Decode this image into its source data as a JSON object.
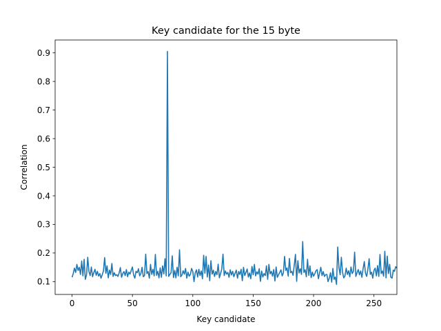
{
  "chart_data": {
    "type": "line",
    "title": "Key candidate for the 15 byte",
    "xlabel": "Key candidate",
    "ylabel": "Correlation",
    "xlim": [
      -14,
      269
    ],
    "ylim": [
      0.055,
      0.945
    ],
    "xticks": [
      0,
      50,
      100,
      150,
      200,
      250
    ],
    "yticks": [
      0.1,
      0.2,
      0.3,
      0.4,
      0.5,
      0.6,
      0.7,
      0.8,
      0.9
    ],
    "grid": false,
    "legend": "none",
    "series": [
      {
        "color": "#1f77b4",
        "x_start": 0,
        "values": [
          0.115,
          0.128,
          0.147,
          0.132,
          0.16,
          0.139,
          0.15,
          0.125,
          0.172,
          0.12,
          0.178,
          0.108,
          0.123,
          0.185,
          0.135,
          0.121,
          0.151,
          0.117,
          0.131,
          0.143,
          0.122,
          0.136,
          0.119,
          0.128,
          0.112,
          0.124,
          0.137,
          0.184,
          0.129,
          0.155,
          0.113,
          0.14,
          0.125,
          0.163,
          0.118,
          0.131,
          0.121,
          0.124,
          0.118,
          0.13,
          0.149,
          0.115,
          0.128,
          0.135,
          0.121,
          0.142,
          0.117,
          0.133,
          0.126,
          0.139,
          0.151,
          0.123,
          0.112,
          0.136,
          0.131,
          0.145,
          0.12,
          0.128,
          0.15,
          0.117,
          0.121,
          0.196,
          0.128,
          0.135,
          0.112,
          0.16,
          0.125,
          0.143,
          0.12,
          0.195,
          0.122,
          0.136,
          0.113,
          0.148,
          0.115,
          0.155,
          0.127,
          0.18,
          0.12,
          0.905,
          0.118,
          0.125,
          0.131,
          0.19,
          0.114,
          0.139,
          0.113,
          0.15,
          0.12,
          0.211,
          0.117,
          0.123,
          0.138,
          0.126,
          0.146,
          0.112,
          0.133,
          0.119,
          0.125,
          0.146,
          0.135,
          0.1,
          0.13,
          0.141,
          0.116,
          0.143,
          0.121,
          0.137,
          0.11,
          0.192,
          0.129,
          0.188,
          0.116,
          0.158,
          0.103,
          0.173,
          0.126,
          0.14,
          0.118,
          0.135,
          0.124,
          0.161,
          0.113,
          0.128,
          0.144,
          0.196,
          0.121,
          0.137,
          0.126,
          0.132,
          0.115,
          0.141,
          0.123,
          0.136,
          0.117,
          0.129,
          0.14,
          0.112,
          0.135,
          0.125,
          0.143,
          0.103,
          0.15,
          0.121,
          0.132,
          0.144,
          0.116,
          0.13,
          0.11,
          0.153,
          0.124,
          0.16,
          0.12,
          0.134,
          0.126,
          0.145,
          0.101,
          0.137,
          0.116,
          0.128,
          0.121,
          0.155,
          0.108,
          0.16,
          0.127,
          0.136,
          0.119,
          0.142,
          0.102,
          0.151,
          0.115,
          0.124,
          0.132,
          0.141,
          0.12,
          0.13,
          0.188,
          0.139,
          0.148,
          0.119,
          0.181,
          0.131,
          0.136,
          0.122,
          0.157,
          0.195,
          0.101,
          0.173,
          0.13,
          0.145,
          0.125,
          0.24,
          0.132,
          0.141,
          0.117,
          0.178,
          0.122,
          0.155,
          0.114,
          0.133,
          0.119,
          0.127,
          0.138,
          0.142,
          0.11,
          0.13,
          0.15,
          0.121,
          0.135,
          0.118,
          0.124,
          0.125,
          0.1,
          0.112,
          0.131,
          0.098,
          0.146,
          0.108,
          0.116,
          0.09,
          0.221,
          0.149,
          0.124,
          0.185,
          0.132,
          0.113,
          0.12,
          0.147,
          0.125,
          0.138,
          0.117,
          0.151,
          0.128,
          0.136,
          0.203,
          0.118,
          0.131,
          0.142,
          0.124,
          0.137,
          0.115,
          0.145,
          0.17,
          0.129,
          0.118,
          0.144,
          0.18,
          0.125,
          0.133,
          0.112,
          0.139,
          0.147,
          0.12,
          0.156,
          0.118,
          0.195,
          0.128,
          0.137,
          0.119,
          0.206,
          0.113,
          0.189,
          0.128,
          0.16,
          0.115,
          0.112,
          0.14,
          0.136,
          0.152,
          0.147
        ]
      }
    ]
  }
}
